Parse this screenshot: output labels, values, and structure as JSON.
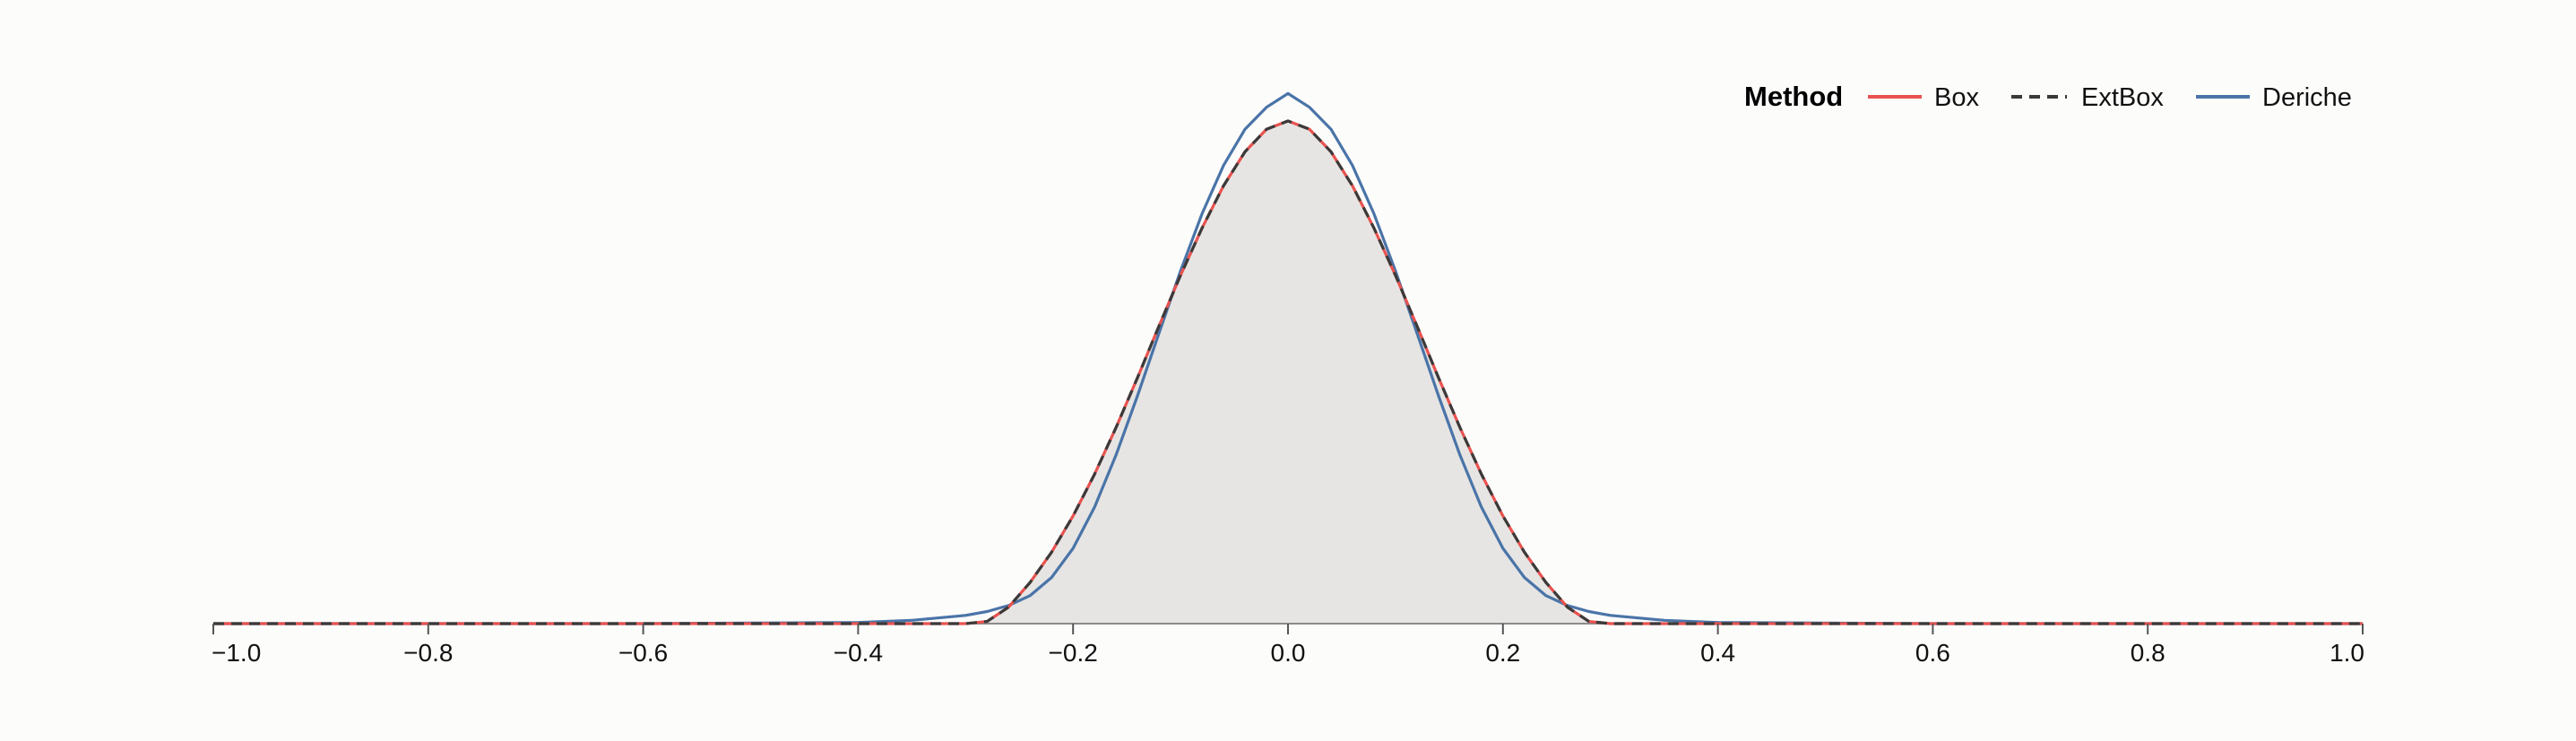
{
  "chart_data": {
    "type": "area",
    "title": "",
    "xlabel": "",
    "ylabel": "",
    "xlim": [
      -1.0,
      1.0
    ],
    "ylim": [
      0,
      1.07
    ],
    "x_ticks": [
      -1.0,
      -0.8,
      -0.6,
      -0.4,
      -0.2,
      0.0,
      0.2,
      0.4,
      0.6,
      0.8,
      1.0
    ],
    "x_tick_labels": [
      "−1.0",
      "−0.8",
      "−0.6",
      "−0.4",
      "−0.2",
      "0.0",
      "0.2",
      "0.4",
      "0.6",
      "0.8",
      "1.0"
    ],
    "grid": false,
    "legend": {
      "title": "Method",
      "placement": "top-right",
      "entries": [
        "Box",
        "ExtBox",
        "Deriche"
      ]
    },
    "filled_area": {
      "color": "#e6e5e3",
      "stroke": "#8a8a8a",
      "x": [
        -1.0,
        -0.3,
        -0.28,
        -0.26,
        -0.24,
        -0.22,
        -0.2,
        -0.18,
        -0.16,
        -0.14,
        -0.12,
        -0.1,
        -0.08,
        -0.06,
        -0.04,
        -0.02,
        0.0,
        0.02,
        0.04,
        0.06,
        0.08,
        0.1,
        0.12,
        0.14,
        0.16,
        0.18,
        0.2,
        0.22,
        0.24,
        0.26,
        0.28,
        0.3,
        1.0
      ],
      "y": [
        0,
        0,
        0.004,
        0.03,
        0.075,
        0.13,
        0.196,
        0.272,
        0.357,
        0.448,
        0.542,
        0.634,
        0.72,
        0.797,
        0.859,
        0.9,
        0.915,
        0.9,
        0.859,
        0.797,
        0.72,
        0.634,
        0.542,
        0.448,
        0.357,
        0.272,
        0.196,
        0.13,
        0.075,
        0.03,
        0.004,
        0,
        0
      ]
    },
    "series": [
      {
        "name": "Box",
        "color": "#e8524f",
        "dash": "solid",
        "x": [
          -1.0,
          -0.3,
          -0.28,
          -0.26,
          -0.24,
          -0.22,
          -0.2,
          -0.18,
          -0.16,
          -0.14,
          -0.12,
          -0.1,
          -0.08,
          -0.06,
          -0.04,
          -0.02,
          0.0,
          0.02,
          0.04,
          0.06,
          0.08,
          0.1,
          0.12,
          0.14,
          0.16,
          0.18,
          0.2,
          0.22,
          0.24,
          0.26,
          0.28,
          0.3,
          1.0
        ],
        "y": [
          0,
          0,
          0.004,
          0.03,
          0.075,
          0.13,
          0.196,
          0.272,
          0.357,
          0.448,
          0.542,
          0.634,
          0.72,
          0.797,
          0.859,
          0.9,
          0.915,
          0.9,
          0.859,
          0.797,
          0.72,
          0.634,
          0.542,
          0.448,
          0.357,
          0.272,
          0.196,
          0.13,
          0.075,
          0.03,
          0.004,
          0,
          0
        ]
      },
      {
        "name": "ExtBox",
        "color": "#3a3a3a",
        "dash": "dashed",
        "x": [
          -1.0,
          -0.3,
          -0.28,
          -0.26,
          -0.24,
          -0.22,
          -0.2,
          -0.18,
          -0.16,
          -0.14,
          -0.12,
          -0.1,
          -0.08,
          -0.06,
          -0.04,
          -0.02,
          0.0,
          0.02,
          0.04,
          0.06,
          0.08,
          0.1,
          0.12,
          0.14,
          0.16,
          0.18,
          0.2,
          0.22,
          0.24,
          0.26,
          0.28,
          0.3,
          1.0
        ],
        "y": [
          0,
          0,
          0.004,
          0.03,
          0.075,
          0.13,
          0.196,
          0.272,
          0.357,
          0.448,
          0.542,
          0.634,
          0.72,
          0.797,
          0.859,
          0.9,
          0.915,
          0.9,
          0.859,
          0.797,
          0.72,
          0.634,
          0.542,
          0.448,
          0.357,
          0.272,
          0.196,
          0.13,
          0.075,
          0.03,
          0.004,
          0,
          0
        ]
      },
      {
        "name": "Deriche",
        "color": "#4a74a8",
        "dash": "solid",
        "x": [
          -1.0,
          -0.6,
          -0.4,
          -0.35,
          -0.3,
          -0.28,
          -0.26,
          -0.24,
          -0.22,
          -0.2,
          -0.18,
          -0.16,
          -0.14,
          -0.12,
          -0.1,
          -0.08,
          -0.06,
          -0.04,
          -0.02,
          0.0,
          0.02,
          0.04,
          0.06,
          0.08,
          0.1,
          0.12,
          0.14,
          0.16,
          0.18,
          0.2,
          0.22,
          0.24,
          0.26,
          0.28,
          0.3,
          0.35,
          0.4,
          0.6,
          1.0
        ],
        "y": [
          0,
          0,
          0.002,
          0.006,
          0.015,
          0.022,
          0.033,
          0.051,
          0.084,
          0.137,
          0.212,
          0.307,
          0.415,
          0.529,
          0.642,
          0.746,
          0.834,
          0.9,
          0.94,
          0.965,
          0.94,
          0.9,
          0.834,
          0.746,
          0.642,
          0.529,
          0.415,
          0.307,
          0.212,
          0.137,
          0.084,
          0.051,
          0.033,
          0.022,
          0.015,
          0.006,
          0.002,
          0,
          0
        ]
      }
    ]
  }
}
